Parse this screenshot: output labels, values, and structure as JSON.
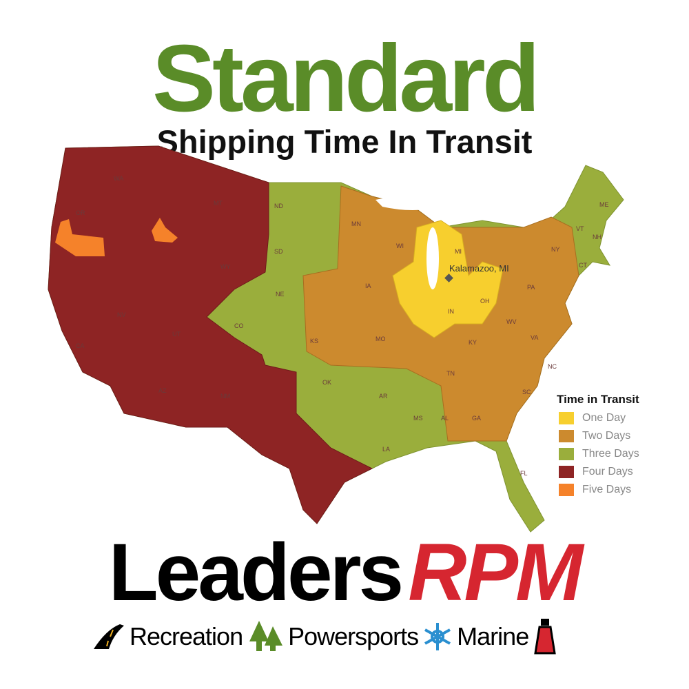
{
  "header": {
    "title": "Standard",
    "subtitle": "Shipping Time In Transit"
  },
  "colors": {
    "one_day": "#f7cf2e",
    "two_days": "#cc8a2e",
    "three_days": "#9aae3c",
    "four_days": "#8e2424",
    "five_days": "#f5822a",
    "title_green": "#5a8c28",
    "rpm_red": "#d62630"
  },
  "map": {
    "origin_label": "Kalamazoo, MI",
    "state_labels": [
      "WA",
      "OR",
      "MT",
      "WY",
      "NV",
      "UT",
      "CA",
      "AZ",
      "NM",
      "CO",
      "ND",
      "SD",
      "NE",
      "KS",
      "OK",
      "MN",
      "IA",
      "MO",
      "AR",
      "LA",
      "MS",
      "AL",
      "GA",
      "FL",
      "TN",
      "KY",
      "WI",
      "MI",
      "IN",
      "OH",
      "WV",
      "VA",
      "NC",
      "SC",
      "PA",
      "NY",
      "VT",
      "NH",
      "ME",
      "CT"
    ]
  },
  "legend": {
    "title": "Time in Transit",
    "items": [
      {
        "label": "One Day",
        "color": "#f7cf2e"
      },
      {
        "label": "Two Days",
        "color": "#cc8a2e"
      },
      {
        "label": "Three Days",
        "color": "#9aae3c"
      },
      {
        "label": "Four Days",
        "color": "#8e2424"
      },
      {
        "label": "Five Days",
        "color": "#f5822a"
      }
    ]
  },
  "brand": {
    "name_a": "Leaders",
    "name_b": "RPM",
    "tags": [
      "Recreation",
      "Powersports",
      "Marine"
    ],
    "icons": [
      "road-icon",
      "pine-trees-icon",
      "snowflake-icon",
      "lighthouse-icon"
    ]
  }
}
